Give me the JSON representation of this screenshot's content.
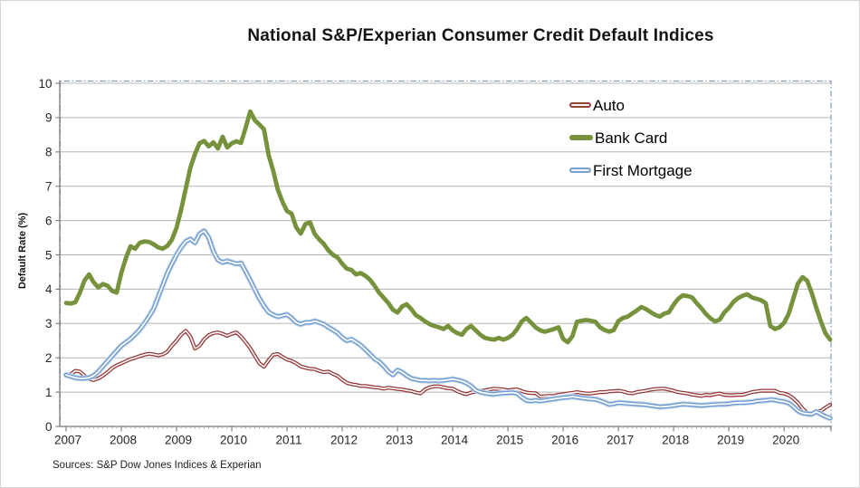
{
  "title": "National S&P/Experian Consumer Credit Default Indices",
  "source_note": "Sources: S&P Dow Jones Indices & Experian",
  "y_axis_title": "Default Rate (%)",
  "legend": [
    {
      "label": "Auto",
      "color": "#953735",
      "style": "outlined"
    },
    {
      "label": "Bank Card",
      "color": "#76923c",
      "style": "solid"
    },
    {
      "label": "First Mortgage",
      "color": "#78a0d0",
      "style": "outlined"
    }
  ],
  "chart_data": {
    "type": "line",
    "x_unit": "month",
    "x_start": "2007-01",
    "x_end": "2020-11",
    "xticks": [
      "2007",
      "2008",
      "2009",
      "2010",
      "2011",
      "2012",
      "2013",
      "2014",
      "2015",
      "2016",
      "2017",
      "2018",
      "2019",
      "2020"
    ],
    "xtick_month_interval": 12,
    "yticks": [
      "0",
      "1",
      "2",
      "3",
      "4",
      "5",
      "6",
      "7",
      "8",
      "9",
      "10"
    ],
    "ytick_step": 1,
    "ylim": [
      0,
      10
    ],
    "grid": true,
    "legend_position": "upper-right-inside",
    "series": [
      {
        "name": "Auto",
        "color": "#953735",
        "style": "outlined-white-core",
        "values": [
          1.47,
          1.52,
          1.62,
          1.6,
          1.48,
          1.38,
          1.35,
          1.4,
          1.48,
          1.58,
          1.7,
          1.78,
          1.84,
          1.9,
          1.96,
          2.0,
          2.05,
          2.09,
          2.12,
          2.1,
          2.07,
          2.1,
          2.18,
          2.35,
          2.5,
          2.67,
          2.79,
          2.62,
          2.27,
          2.35,
          2.54,
          2.66,
          2.72,
          2.74,
          2.7,
          2.64,
          2.7,
          2.74,
          2.62,
          2.46,
          2.28,
          2.06,
          1.84,
          1.74,
          1.93,
          2.09,
          2.11,
          2.03,
          1.95,
          1.91,
          1.84,
          1.75,
          1.71,
          1.68,
          1.67,
          1.62,
          1.58,
          1.6,
          1.53,
          1.47,
          1.36,
          1.27,
          1.23,
          1.21,
          1.18,
          1.18,
          1.16,
          1.14,
          1.13,
          1.1,
          1.13,
          1.11,
          1.09,
          1.08,
          1.05,
          1.03,
          0.99,
          0.96,
          1.08,
          1.14,
          1.17,
          1.17,
          1.14,
          1.11,
          1.1,
          1.03,
          0.97,
          0.94,
          0.99,
          1.01,
          1.03,
          1.05,
          1.08,
          1.1,
          1.09,
          1.08,
          1.05,
          1.07,
          1.08,
          1.03,
          0.99,
          0.97,
          0.97,
          0.87,
          0.88,
          0.89,
          0.89,
          0.92,
          0.94,
          0.96,
          0.98,
          1.0,
          0.98,
          0.96,
          0.96,
          0.98,
          1.0,
          1.0,
          1.02,
          1.03,
          1.04,
          1.02,
          0.98,
          0.96,
          1.0,
          1.02,
          1.04,
          1.07,
          1.09,
          1.1,
          1.1,
          1.07,
          1.04,
          1.0,
          0.98,
          0.96,
          0.93,
          0.91,
          0.89,
          0.92,
          0.91,
          0.94,
          0.96,
          0.92,
          0.91,
          0.91,
          0.92,
          0.92,
          0.96,
          1.0,
          1.02,
          1.04,
          1.04,
          1.04,
          1.04,
          0.98,
          0.96,
          0.91,
          0.82,
          0.69,
          0.52,
          0.4,
          0.37,
          0.44,
          0.45,
          0.55,
          0.63
        ]
      },
      {
        "name": "Bank Card",
        "color": "#76923c",
        "style": "solid",
        "values": [
          3.6,
          3.58,
          3.62,
          3.9,
          4.25,
          4.43,
          4.2,
          4.05,
          4.15,
          4.1,
          3.95,
          3.9,
          4.47,
          4.91,
          5.25,
          5.18,
          5.35,
          5.39,
          5.38,
          5.31,
          5.22,
          5.18,
          5.26,
          5.44,
          5.79,
          6.32,
          6.93,
          7.54,
          7.94,
          8.25,
          8.32,
          8.16,
          8.28,
          8.1,
          8.44,
          8.13,
          8.25,
          8.31,
          8.26,
          8.7,
          9.18,
          8.92,
          8.8,
          8.66,
          7.91,
          7.45,
          6.9,
          6.55,
          6.28,
          6.2,
          5.8,
          5.62,
          5.9,
          5.95,
          5.61,
          5.45,
          5.32,
          5.13,
          5.0,
          4.92,
          4.74,
          4.6,
          4.56,
          4.43,
          4.47,
          4.39,
          4.28,
          4.1,
          3.9,
          3.75,
          3.6,
          3.4,
          3.32,
          3.5,
          3.56,
          3.42,
          3.24,
          3.16,
          3.06,
          2.98,
          2.93,
          2.89,
          2.84,
          2.93,
          2.8,
          2.72,
          2.67,
          2.84,
          2.93,
          2.8,
          2.67,
          2.58,
          2.55,
          2.53,
          2.58,
          2.53,
          2.58,
          2.67,
          2.84,
          3.06,
          3.16,
          3.03,
          2.89,
          2.8,
          2.76,
          2.8,
          2.84,
          2.89,
          2.55,
          2.45,
          2.63,
          3.05,
          3.08,
          3.1,
          3.08,
          3.05,
          2.89,
          2.81,
          2.76,
          2.81,
          3.07,
          3.16,
          3.2,
          3.29,
          3.38,
          3.48,
          3.42,
          3.33,
          3.25,
          3.2,
          3.29,
          3.33,
          3.55,
          3.72,
          3.82,
          3.8,
          3.76,
          3.59,
          3.45,
          3.28,
          3.15,
          3.06,
          3.11,
          3.32,
          3.45,
          3.63,
          3.74,
          3.81,
          3.85,
          3.76,
          3.72,
          3.68,
          3.59,
          2.93,
          2.84,
          2.89,
          3.02,
          3.28,
          3.72,
          4.16,
          4.35,
          4.25,
          3.89,
          3.46,
          3.06,
          2.71,
          2.53
        ]
      },
      {
        "name": "First Mortgage",
        "color": "#78a0d0",
        "style": "outlined-white-core",
        "values": [
          1.5,
          1.46,
          1.42,
          1.4,
          1.4,
          1.42,
          1.48,
          1.6,
          1.75,
          1.9,
          2.05,
          2.2,
          2.35,
          2.45,
          2.55,
          2.68,
          2.82,
          3.0,
          3.2,
          3.42,
          3.77,
          4.12,
          4.47,
          4.74,
          5.0,
          5.22,
          5.39,
          5.46,
          5.35,
          5.61,
          5.7,
          5.5,
          5.1,
          4.85,
          4.78,
          4.82,
          4.78,
          4.74,
          4.76,
          4.52,
          4.26,
          3.99,
          3.73,
          3.51,
          3.33,
          3.25,
          3.2,
          3.23,
          3.26,
          3.16,
          3.03,
          2.98,
          3.03,
          3.03,
          3.07,
          3.03,
          2.98,
          2.89,
          2.81,
          2.72,
          2.59,
          2.5,
          2.54,
          2.46,
          2.37,
          2.24,
          2.11,
          1.97,
          1.89,
          1.76,
          1.6,
          1.5,
          1.64,
          1.58,
          1.48,
          1.4,
          1.37,
          1.34,
          1.34,
          1.33,
          1.34,
          1.33,
          1.34,
          1.36,
          1.38,
          1.35,
          1.32,
          1.26,
          1.18,
          1.05,
          1.0,
          0.97,
          0.95,
          0.94,
          0.96,
          0.97,
          0.98,
          0.99,
          0.96,
          0.85,
          0.76,
          0.74,
          0.76,
          0.74,
          0.76,
          0.78,
          0.8,
          0.82,
          0.84,
          0.85,
          0.87,
          0.85,
          0.83,
          0.81,
          0.8,
          0.79,
          0.75,
          0.7,
          0.64,
          0.66,
          0.69,
          0.68,
          0.67,
          0.66,
          0.65,
          0.64,
          0.63,
          0.61,
          0.59,
          0.57,
          0.58,
          0.59,
          0.61,
          0.63,
          0.65,
          0.64,
          0.63,
          0.62,
          0.61,
          0.62,
          0.63,
          0.64,
          0.65,
          0.65,
          0.66,
          0.68,
          0.69,
          0.69,
          0.7,
          0.71,
          0.74,
          0.75,
          0.76,
          0.78,
          0.77,
          0.74,
          0.72,
          0.68,
          0.58,
          0.45,
          0.39,
          0.37,
          0.36,
          0.43,
          0.36,
          0.29,
          0.24
        ]
      }
    ],
    "colors": {
      "gridline": "#b5b5b5",
      "axis": "#808080",
      "tick_label": "#262626",
      "selection_border": "#8599bb"
    }
  }
}
